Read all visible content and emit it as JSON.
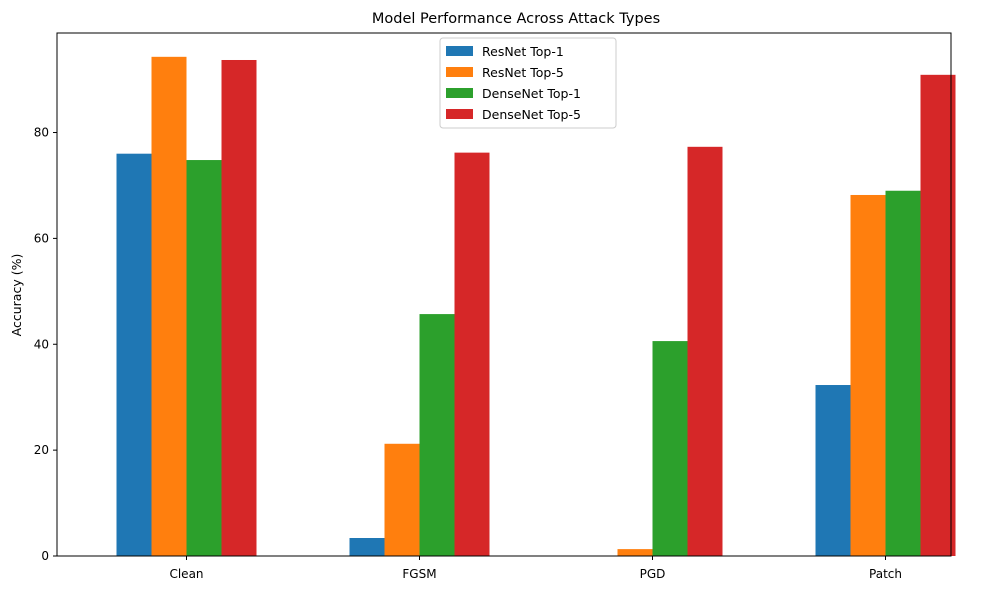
{
  "chart_data": {
    "type": "bar",
    "title": "Model Performance Across Attack Types",
    "xlabel": "",
    "ylabel": "Accuracy (%)",
    "categories": [
      "Clean",
      "FGSM",
      "PGD",
      "Patch"
    ],
    "ylim": [
      0,
      98.8
    ],
    "yticks": [
      0,
      20,
      40,
      60,
      80
    ],
    "grid": false,
    "legend_position": "top-center",
    "series": [
      {
        "name": "ResNet Top-1",
        "color": "#1f77b4",
        "values": [
          76.0,
          3.4,
          0.0,
          32.3
        ]
      },
      {
        "name": "ResNet Top-5",
        "color": "#ff7f0e",
        "values": [
          94.3,
          21.2,
          1.3,
          68.2
        ]
      },
      {
        "name": "DenseNet Top-1",
        "color": "#2ca02c",
        "values": [
          74.8,
          45.7,
          40.6,
          69.0
        ]
      },
      {
        "name": "DenseNet Top-5",
        "color": "#d62728",
        "values": [
          93.7,
          76.2,
          77.3,
          90.9
        ]
      }
    ]
  }
}
